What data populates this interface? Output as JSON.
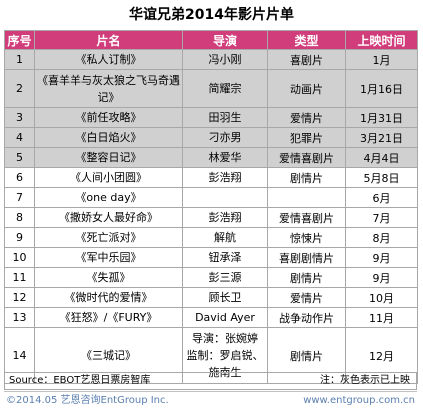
{
  "title": "华谊兄弟2014年影片片单",
  "columns": [
    "序号",
    "片名",
    "导演",
    "类型",
    "上映时间"
  ],
  "rows": [
    {
      "no": "1",
      "film": "《私人订制》",
      "director": "冯小刚",
      "genre": "喜剧片",
      "date": "1月",
      "shaded": true
    },
    {
      "no": "2",
      "film": "《喜羊羊与灰太狼之飞马奇遇记》",
      "director": "简耀宗",
      "genre": "动画片",
      "date": "1月16日",
      "shaded": true
    },
    {
      "no": "3",
      "film": "《前任攻略》",
      "director": "田羽生",
      "genre": "爱情片",
      "date": "1月31日",
      "shaded": true
    },
    {
      "no": "4",
      "film": "《白日焰火》",
      "director": "刁亦男",
      "genre": "犯罪片",
      "date": "3月21日",
      "shaded": true
    },
    {
      "no": "5",
      "film": "《整容日记》",
      "director": "林爱华",
      "genre": "爱情喜剧片",
      "date": "4月4日",
      "shaded": true
    },
    {
      "no": "6",
      "film": "《人间小团圆》",
      "director": "彭浩翔",
      "genre": "剧情片",
      "date": "5月8日",
      "shaded": false
    },
    {
      "no": "7",
      "film": "《one day》",
      "director": "",
      "genre": "",
      "date": "6月",
      "shaded": false
    },
    {
      "no": "8",
      "film": "《撒娇女人最好命》",
      "director": "彭浩翔",
      "genre": "爱情喜剧片",
      "date": "7月",
      "shaded": false
    },
    {
      "no": "9",
      "film": "《死亡派对》",
      "director": "解航",
      "genre": "惊悚片",
      "date": "8月",
      "shaded": false
    },
    {
      "no": "10",
      "film": "《军中乐园》",
      "director": "钮承泽",
      "genre": "喜剧剧情片",
      "date": "9月",
      "shaded": false
    },
    {
      "no": "11",
      "film": "《失孤》",
      "director": "彭三源",
      "genre": "剧情片",
      "date": "9月",
      "shaded": false
    },
    {
      "no": "12",
      "film": "《微时代的爱情》",
      "director": "顾长卫",
      "genre": "爱情片",
      "date": "10月",
      "shaded": false
    },
    {
      "no": "13",
      "film": "《狂怒》/《FURY》",
      "director": "David Ayer",
      "genre": "战争动作片",
      "date": "11月",
      "shaded": false
    },
    {
      "no": "14",
      "film": "《三城记》",
      "director": "导演：张婉婷\n监制：罗启锐、施南生",
      "genre": "剧情片",
      "date": "12月",
      "shaded": false
    }
  ],
  "source_label": "Source：EBOT艺恩日票房智库",
  "note": "注：灰色表示已上映",
  "footer_left": "©2014.05 艺恩咨询EntGroup Inc.",
  "footer_right": "www.entgroup.com.cn",
  "colors": {
    "header_bg": "#d13c7a",
    "shaded_row": "#d0d0d0",
    "footer_text": "#5a7fb0"
  }
}
